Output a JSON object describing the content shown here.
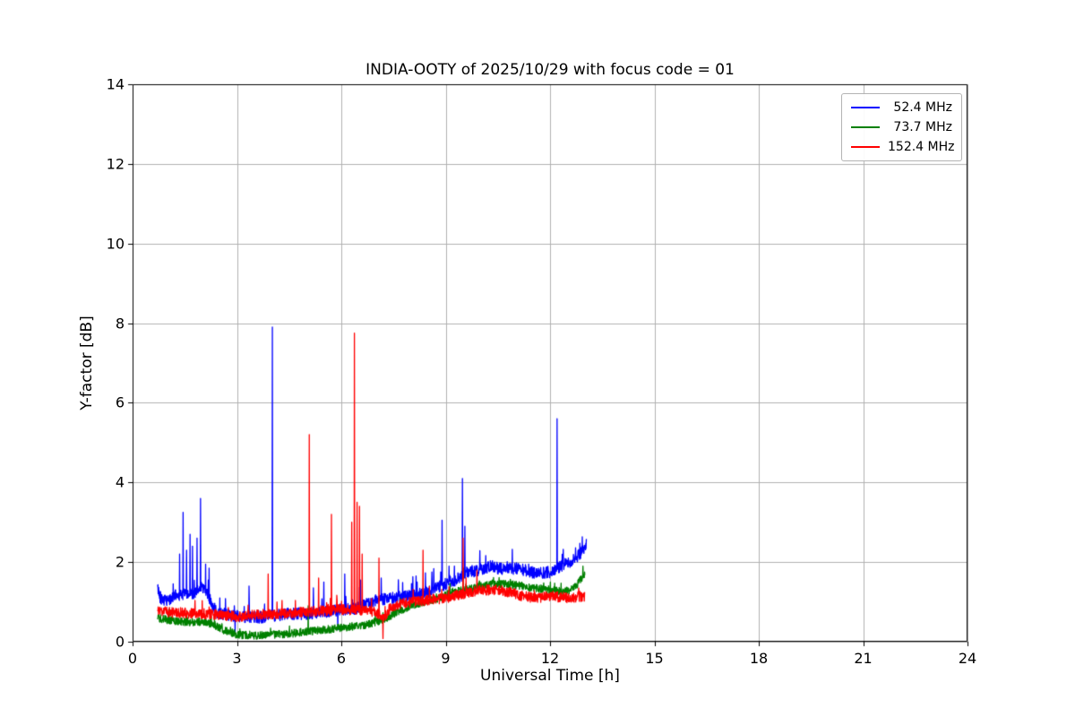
{
  "chart_data": {
    "type": "line",
    "title": "INDIA-OOTY of 2025/10/29 with focus code = 01",
    "xlabel": "Universal Time [h]",
    "ylabel": "Y-factor [dB]",
    "xlim": [
      0,
      24
    ],
    "ylim": [
      0,
      14
    ],
    "xticks": [
      0,
      3,
      6,
      9,
      12,
      15,
      18,
      21,
      24
    ],
    "yticks": [
      0,
      2,
      4,
      6,
      8,
      10,
      12,
      14
    ],
    "grid": true,
    "grid_color": "#b0b0b0",
    "legend_position": "upper right",
    "series": [
      {
        "name": "52.4 MHz",
        "color": "#0000ff",
        "x_range": [
          0.72,
          13.05
        ],
        "baseline": [
          [
            0.72,
            1.35
          ],
          [
            0.8,
            1.1
          ],
          [
            1.0,
            1.0
          ],
          [
            1.2,
            1.15
          ],
          [
            1.5,
            1.2
          ],
          [
            1.8,
            1.2
          ],
          [
            2.0,
            1.4
          ],
          [
            2.2,
            1.1
          ],
          [
            2.4,
            0.75
          ],
          [
            2.6,
            0.7
          ],
          [
            3.0,
            0.65
          ],
          [
            3.5,
            0.6
          ],
          [
            4.0,
            0.65
          ],
          [
            4.5,
            0.7
          ],
          [
            5.0,
            0.7
          ],
          [
            5.5,
            0.75
          ],
          [
            6.0,
            0.8
          ],
          [
            6.5,
            0.85
          ],
          [
            7.0,
            1.05
          ],
          [
            7.5,
            1.1
          ],
          [
            8.0,
            1.15
          ],
          [
            8.5,
            1.25
          ],
          [
            9.0,
            1.45
          ],
          [
            9.3,
            1.55
          ],
          [
            9.6,
            1.75
          ],
          [
            10.0,
            1.8
          ],
          [
            10.3,
            1.9
          ],
          [
            10.7,
            1.8
          ],
          [
            11.0,
            1.85
          ],
          [
            11.3,
            1.8
          ],
          [
            11.6,
            1.7
          ],
          [
            12.0,
            1.75
          ],
          [
            12.3,
            1.9
          ],
          [
            12.6,
            2.0
          ],
          [
            12.85,
            2.2
          ],
          [
            13.05,
            2.45
          ]
        ],
        "noise": 0.15,
        "burst_prob": 0.04,
        "burst_amp": 0.5,
        "spikes": [
          [
            1.35,
            2.2
          ],
          [
            1.45,
            3.25
          ],
          [
            1.55,
            2.3
          ],
          [
            1.65,
            2.7
          ],
          [
            1.72,
            2.4
          ],
          [
            1.85,
            2.6
          ],
          [
            1.95,
            3.6
          ],
          [
            2.1,
            1.95
          ],
          [
            2.2,
            1.85
          ],
          [
            2.95,
            0.2
          ],
          [
            3.35,
            1.4
          ],
          [
            4.02,
            7.9
          ],
          [
            5.2,
            1.35
          ],
          [
            5.5,
            1.5
          ],
          [
            5.9,
            0.3
          ],
          [
            6.1,
            1.7
          ],
          [
            6.55,
            1.55
          ],
          [
            7.15,
            1.6
          ],
          [
            8.15,
            1.65
          ],
          [
            8.6,
            1.75
          ],
          [
            8.9,
            3.05
          ],
          [
            9.1,
            1.9
          ],
          [
            9.48,
            4.1
          ],
          [
            9.55,
            2.9
          ],
          [
            12.2,
            5.6
          ]
        ]
      },
      {
        "name": "73.7 MHz",
        "color": "#008000",
        "x_range": [
          0.72,
          13.0
        ],
        "baseline": [
          [
            0.72,
            0.6
          ],
          [
            1.0,
            0.55
          ],
          [
            1.5,
            0.5
          ],
          [
            2.0,
            0.5
          ],
          [
            2.3,
            0.45
          ],
          [
            2.6,
            0.3
          ],
          [
            3.0,
            0.18
          ],
          [
            3.5,
            0.15
          ],
          [
            4.0,
            0.18
          ],
          [
            4.5,
            0.2
          ],
          [
            5.0,
            0.25
          ],
          [
            5.5,
            0.3
          ],
          [
            6.0,
            0.35
          ],
          [
            6.3,
            0.38
          ],
          [
            6.7,
            0.42
          ],
          [
            7.0,
            0.5
          ],
          [
            7.3,
            0.6
          ],
          [
            7.6,
            0.75
          ],
          [
            8.0,
            0.9
          ],
          [
            8.4,
            1.0
          ],
          [
            8.8,
            1.1
          ],
          [
            9.2,
            1.25
          ],
          [
            9.6,
            1.3
          ],
          [
            10.0,
            1.4
          ],
          [
            10.4,
            1.45
          ],
          [
            10.8,
            1.45
          ],
          [
            11.2,
            1.4
          ],
          [
            11.6,
            1.35
          ],
          [
            12.0,
            1.3
          ],
          [
            12.4,
            1.25
          ],
          [
            12.7,
            1.35
          ],
          [
            13.0,
            1.7
          ]
        ],
        "noise": 0.1,
        "burst_prob": 0.03,
        "burst_amp": 0.25,
        "spikes": [
          [
            5.05,
            0.9
          ],
          [
            9.5,
            1.85
          ],
          [
            12.95,
            1.9
          ]
        ]
      },
      {
        "name": "152.4 MHz",
        "color": "#ff0000",
        "x_range": [
          0.72,
          13.0
        ],
        "baseline": [
          [
            0.72,
            0.8
          ],
          [
            1.0,
            0.75
          ],
          [
            1.5,
            0.72
          ],
          [
            2.0,
            0.7
          ],
          [
            2.5,
            0.68
          ],
          [
            3.0,
            0.62
          ],
          [
            3.5,
            0.68
          ],
          [
            4.0,
            0.7
          ],
          [
            4.5,
            0.72
          ],
          [
            5.0,
            0.75
          ],
          [
            5.5,
            0.78
          ],
          [
            6.0,
            0.8
          ],
          [
            6.5,
            0.8
          ],
          [
            7.0,
            0.75
          ],
          [
            7.2,
            0.55
          ],
          [
            7.4,
            0.85
          ],
          [
            7.7,
            0.95
          ],
          [
            8.0,
            1.0
          ],
          [
            8.5,
            1.05
          ],
          [
            9.0,
            1.1
          ],
          [
            9.5,
            1.2
          ],
          [
            10.0,
            1.3
          ],
          [
            10.5,
            1.3
          ],
          [
            10.8,
            1.25
          ],
          [
            11.2,
            1.15
          ],
          [
            11.6,
            1.1
          ],
          [
            12.0,
            1.15
          ],
          [
            12.5,
            1.1
          ],
          [
            13.0,
            1.15
          ]
        ],
        "noise": 0.13,
        "burst_prob": 0.03,
        "burst_amp": 0.3,
        "spikes": [
          [
            3.9,
            1.7
          ],
          [
            5.08,
            5.2
          ],
          [
            5.35,
            1.6
          ],
          [
            5.72,
            3.2
          ],
          [
            6.3,
            3.0
          ],
          [
            6.38,
            7.75
          ],
          [
            6.45,
            3.5
          ],
          [
            6.52,
            3.4
          ],
          [
            6.6,
            2.2
          ],
          [
            7.08,
            2.1
          ],
          [
            7.2,
            0.08
          ],
          [
            8.35,
            2.3
          ],
          [
            9.5,
            2.6
          ],
          [
            9.9,
            1.8
          ]
        ]
      }
    ]
  }
}
